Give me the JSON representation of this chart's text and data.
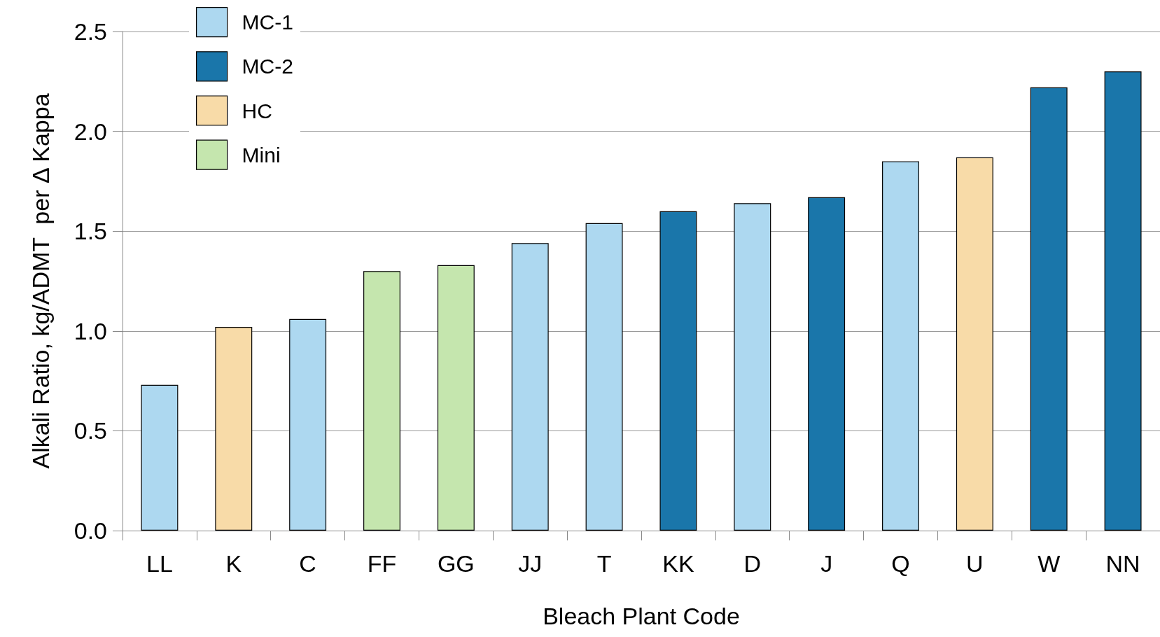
{
  "chart_data": {
    "type": "bar",
    "xlabel": "Bleach Plant Code",
    "ylabel": "Alkali Ratio, kg/ADMT  per Δ Kappa",
    "categories": [
      "LL",
      "K",
      "C",
      "FF",
      "GG",
      "JJ",
      "T",
      "KK",
      "D",
      "J",
      "Q",
      "U",
      "W",
      "NN"
    ],
    "stacked": true,
    "series": [
      {
        "name": "MC-1",
        "color": "#add8f0",
        "values": [
          0.73,
          null,
          1.06,
          null,
          null,
          1.44,
          1.54,
          null,
          1.64,
          null,
          1.85,
          null,
          null,
          null
        ]
      },
      {
        "name": "MC-2",
        "color": "#1a76aa",
        "values": [
          null,
          null,
          null,
          null,
          null,
          null,
          null,
          1.6,
          null,
          1.67,
          null,
          null,
          2.22,
          2.3
        ]
      },
      {
        "name": "HC",
        "color": "#f8dba8",
        "values": [
          null,
          1.02,
          null,
          null,
          null,
          null,
          null,
          null,
          null,
          null,
          null,
          1.87,
          null,
          null
        ]
      },
      {
        "name": "Mini",
        "color": "#c5e6ae",
        "values": [
          null,
          null,
          null,
          1.3,
          1.33,
          null,
          null,
          null,
          null,
          null,
          null,
          null,
          null,
          null
        ]
      }
    ],
    "ylim": [
      0,
      2.5
    ],
    "yticks": [
      {
        "value": 0,
        "label": "0.0"
      },
      0.5,
      {
        "value": 1,
        "label": "1.0"
      },
      1.5,
      {
        "value": 2,
        "label": "2.0"
      },
      2.5
    ],
    "grid": "y",
    "legend": "top left"
  }
}
